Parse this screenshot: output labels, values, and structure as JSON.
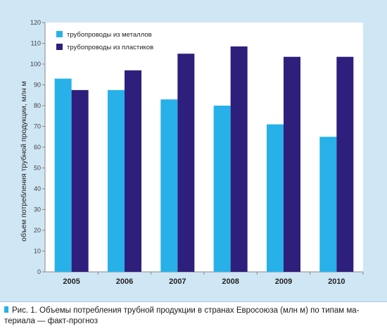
{
  "chart_data": {
    "type": "bar",
    "categories": [
      "2005",
      "2006",
      "2007",
      "2008",
      "2009",
      "2010"
    ],
    "series": [
      {
        "name": "трубопроводы из металлов",
        "values": [
          93,
          87.5,
          83,
          80,
          71,
          65
        ],
        "color": "#27b1e8"
      },
      {
        "name": "трубопроводы из пластиков",
        "values": [
          87.5,
          97,
          105,
          108.5,
          103.5,
          103.5
        ],
        "color": "#2e1f7c"
      }
    ],
    "ylabel": "объем потребления трубной продукции, млн м",
    "xlabel": "",
    "ylim": [
      0,
      120
    ],
    "yticks": [
      0,
      10,
      20,
      30,
      40,
      50,
      60,
      70,
      80,
      90,
      100,
      110,
      120
    ],
    "grid": false,
    "legend_position": "top-left"
  },
  "caption": {
    "text": "Рис. 1. Объемы потребления трубной продукции в странах Евросоюза (млн м) по типам ма-териала — факт-прогноз"
  },
  "colors": {
    "panel_background": "#cfe6f5",
    "plot_background": "#ffffff",
    "caption_marker": "#27b1e8"
  }
}
